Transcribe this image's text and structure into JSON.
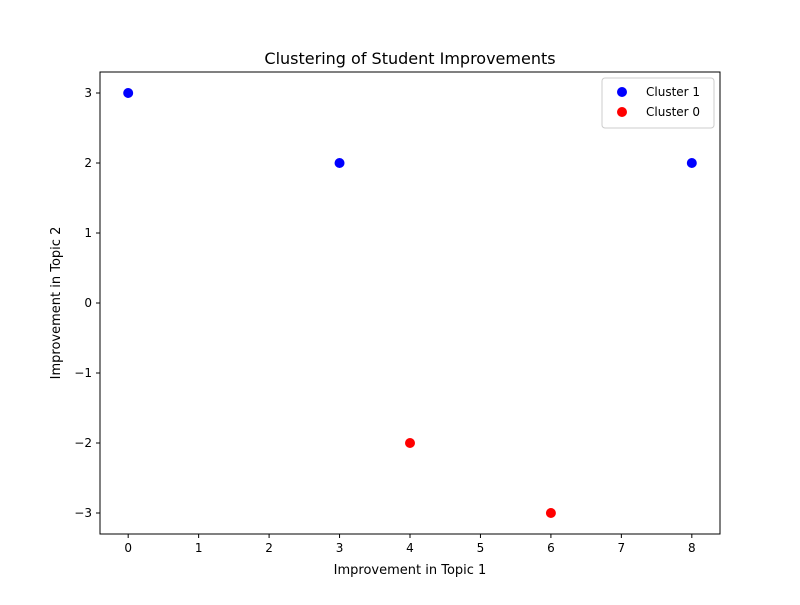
{
  "chart_data": {
    "type": "scatter",
    "title": "Clustering of Student Improvements",
    "xlabel": "Improvement in Topic 1",
    "ylabel": "Improvement in Topic 2",
    "xlim": [
      -0.4,
      8.4
    ],
    "ylim": [
      -3.3,
      3.3
    ],
    "xticks": [
      0,
      1,
      2,
      3,
      4,
      5,
      6,
      7,
      8
    ],
    "yticks": [
      -3,
      -2,
      -1,
      0,
      1,
      2,
      3
    ],
    "grid": false,
    "legend_position": "top-right",
    "series": [
      {
        "name": "Cluster 1",
        "color": "#0000ff",
        "points": [
          [
            0,
            3
          ],
          [
            3,
            2
          ],
          [
            8,
            2
          ]
        ]
      },
      {
        "name": "Cluster 0",
        "color": "#ff0000",
        "points": [
          [
            4,
            -2
          ],
          [
            6,
            -3
          ]
        ]
      }
    ]
  }
}
